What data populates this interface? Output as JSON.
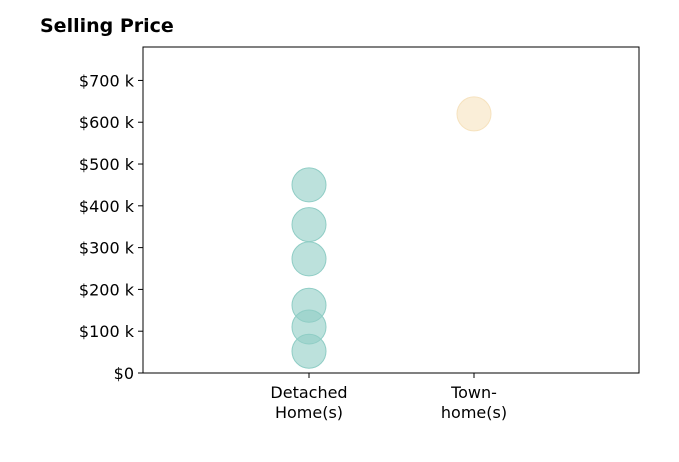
{
  "chart_data": {
    "type": "scatter",
    "title": "Selling Price",
    "categories": [
      "Detached Home(s)",
      "Town-home(s)"
    ],
    "category_tick_lines": [
      [
        "Detached",
        "Home(s)"
      ],
      [
        "Town-",
        "home(s)"
      ]
    ],
    "series": [
      {
        "category": "Detached Home(s)",
        "values": [
          450,
          355,
          273,
          162,
          110,
          52
        ],
        "color": "#8fcdc5"
      },
      {
        "category": "Town-home(s)",
        "values": [
          620
        ],
        "color": "#f6e2be"
      }
    ],
    "unit": "k",
    "ylim": [
      0,
      780
    ],
    "yticks": [
      0,
      100,
      200,
      300,
      400,
      500,
      600,
      700
    ],
    "ytick_labels": [
      "$0",
      "$100 k",
      "$200 k",
      "$300 k",
      "$400 k",
      "$500 k",
      "$600 k",
      "$700 k"
    ],
    "xlabel": "",
    "ylabel": "",
    "grid": false
  }
}
